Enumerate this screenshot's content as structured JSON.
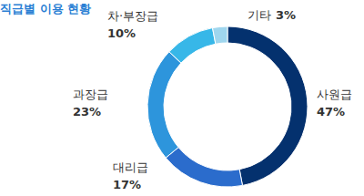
{
  "chart_data": {
    "type": "donut",
    "title": "직급별 이용 현황",
    "categories": [
      "사원급",
      "대리급",
      "과장급",
      "차·부장급",
      "기타"
    ],
    "values": [
      47,
      17,
      23,
      10,
      3
    ],
    "value_labels": [
      "47%",
      "17%",
      "23%",
      "10%",
      "3%"
    ],
    "colors": [
      "#04316e",
      "#2b6ccc",
      "#2d95dc",
      "#37b7e8",
      "#9fd6ee"
    ],
    "data_labels": true
  }
}
